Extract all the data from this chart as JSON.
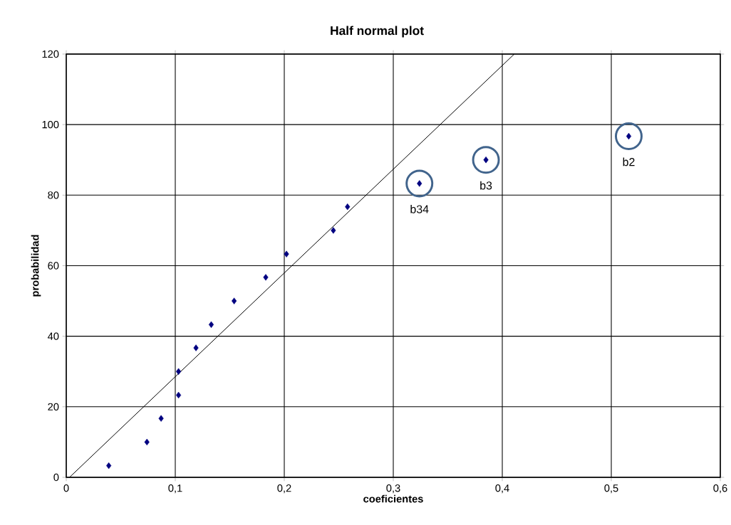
{
  "chart_data": {
    "type": "scatter",
    "title": "Half normal plot",
    "xlabel": "coeficientes",
    "ylabel": "probabilidad",
    "xlim": [
      0,
      0.6
    ],
    "ylim": [
      0,
      120
    ],
    "xticks": [
      0,
      {
        "value": 0.1,
        "label": "0,1"
      },
      {
        "value": 0.2,
        "label": "0,2"
      },
      {
        "value": 0.3,
        "label": "0,3"
      },
      {
        "value": 0.4,
        "label": "0,4"
      },
      {
        "value": 0.5,
        "label": "0,5"
      },
      {
        "value": 0.6,
        "label": "0,6"
      }
    ],
    "yticks": [
      0,
      20,
      40,
      60,
      80,
      100,
      120
    ],
    "grid": true,
    "marker": "diamond",
    "series": [
      {
        "color": "#000080",
        "x": [
          0.039,
          0.074,
          0.087,
          0.103,
          0.103,
          0.119,
          0.133,
          0.154,
          0.183,
          0.202,
          0.245,
          0.258,
          0.324,
          0.385,
          0.516
        ],
        "values": [
          3.3,
          10,
          16.7,
          23.3,
          30,
          36.7,
          43.3,
          50,
          56.7,
          63.3,
          70,
          76.7,
          83.3,
          90,
          96.7
        ]
      },
      {
        "type": "line",
        "color": "#000000",
        "marker": "none",
        "x": [
          0.003,
          0.411
        ],
        "values": [
          0,
          120
        ]
      }
    ],
    "annotations": [
      {
        "text": "b34",
        "x": 0.324,
        "y": 83.3
      },
      {
        "text": "b3",
        "x": 0.385,
        "y": 90
      },
      {
        "text": "b2",
        "x": 0.516,
        "y": 96.7
      }
    ]
  }
}
